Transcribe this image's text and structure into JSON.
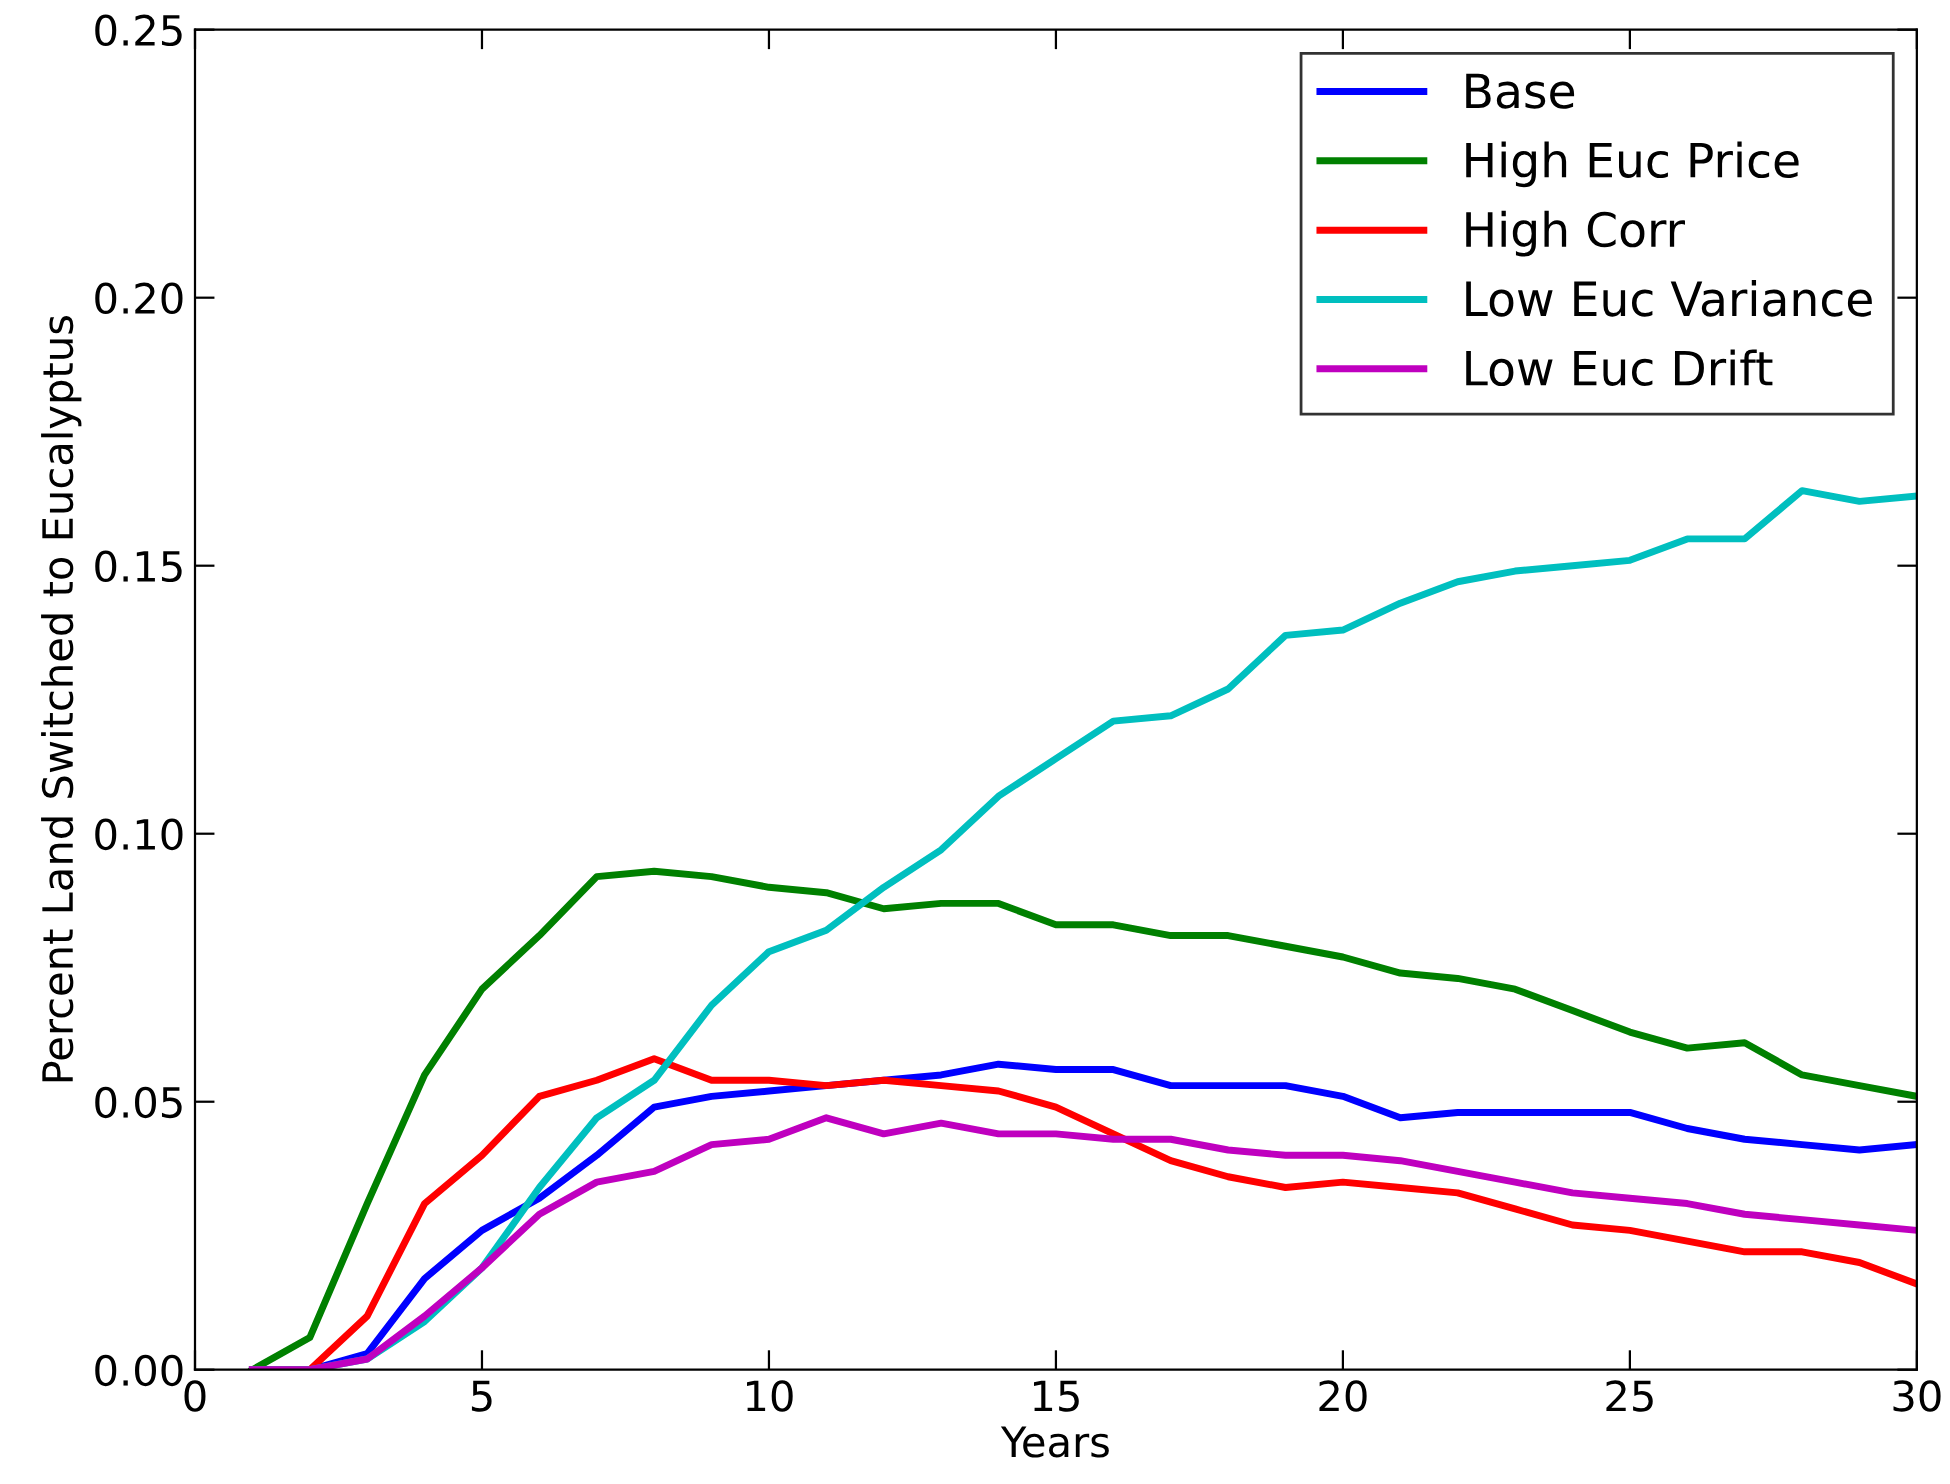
{
  "chart_data": {
    "type": "line",
    "xlabel": "Years",
    "ylabel": "Percent Land Switched to Eucalyptus",
    "x": [
      1,
      2,
      3,
      4,
      5,
      6,
      7,
      8,
      9,
      10,
      11,
      12,
      13,
      14,
      15,
      16,
      17,
      18,
      19,
      20,
      21,
      22,
      23,
      24,
      25,
      26,
      27,
      28,
      29,
      30
    ],
    "series": [
      {
        "name": "Base",
        "color": "#0000ff",
        "values": [
          0,
          0,
          0.003,
          0.017,
          0.026,
          0.032,
          0.04,
          0.049,
          0.051,
          0.052,
          0.053,
          0.054,
          0.055,
          0.057,
          0.056,
          0.056,
          0.053,
          0.053,
          0.053,
          0.051,
          0.047,
          0.048,
          0.048,
          0.048,
          0.048,
          0.045,
          0.043,
          0.042,
          0.041,
          0.042
        ]
      },
      {
        "name": "High Euc Price",
        "color": "#008000",
        "values": [
          0,
          0.006,
          0.031,
          0.055,
          0.071,
          0.081,
          0.092,
          0.093,
          0.092,
          0.09,
          0.089,
          0.086,
          0.087,
          0.087,
          0.083,
          0.083,
          0.081,
          0.081,
          0.079,
          0.077,
          0.074,
          0.073,
          0.071,
          0.067,
          0.063,
          0.06,
          0.061,
          0.055,
          0.053,
          0.051
        ]
      },
      {
        "name": "High Corr",
        "color": "#ff0000",
        "values": [
          0,
          0,
          0.01,
          0.031,
          0.04,
          0.051,
          0.054,
          0.058,
          0.054,
          0.054,
          0.053,
          0.054,
          0.053,
          0.052,
          0.049,
          0.044,
          0.039,
          0.036,
          0.034,
          0.035,
          0.034,
          0.033,
          0.03,
          0.027,
          0.026,
          0.024,
          0.022,
          0.022,
          0.02,
          0.016
        ]
      },
      {
        "name": "Low Euc Variance",
        "color": "#00bfbf",
        "values": [
          0,
          0,
          0.002,
          0.009,
          0.019,
          0.034,
          0.047,
          0.054,
          0.068,
          0.078,
          0.082,
          0.09,
          0.097,
          0.107,
          0.114,
          0.121,
          0.122,
          0.127,
          0.137,
          0.138,
          0.143,
          0.147,
          0.149,
          0.15,
          0.151,
          0.155,
          0.155,
          0.164,
          0.162,
          0.163
        ]
      },
      {
        "name": "Low Euc Drift",
        "color": "#bf00bf",
        "values": [
          0,
          0,
          0.002,
          0.01,
          0.019,
          0.029,
          0.035,
          0.037,
          0.042,
          0.043,
          0.047,
          0.044,
          0.046,
          0.044,
          0.044,
          0.043,
          0.043,
          0.041,
          0.04,
          0.04,
          0.039,
          0.037,
          0.035,
          0.033,
          0.032,
          0.031,
          0.029,
          0.028,
          0.027,
          0.026
        ]
      }
    ],
    "xlim": [
      0,
      30
    ],
    "xticks": [
      0,
      5,
      10,
      15,
      20,
      25,
      30
    ],
    "ylim": [
      0,
      0.25
    ],
    "yticks": [
      {
        "value": 0,
        "label": "0.00"
      },
      {
        "value": 0.05,
        "label": "0.05"
      },
      {
        "value": 0.1,
        "label": "0.10"
      },
      {
        "value": 0.15,
        "label": "0.15"
      },
      {
        "value": 0.2,
        "label": "0.20"
      },
      {
        "value": 0.25,
        "label": "0.25"
      }
    ],
    "legend": "top right",
    "grid": false
  }
}
